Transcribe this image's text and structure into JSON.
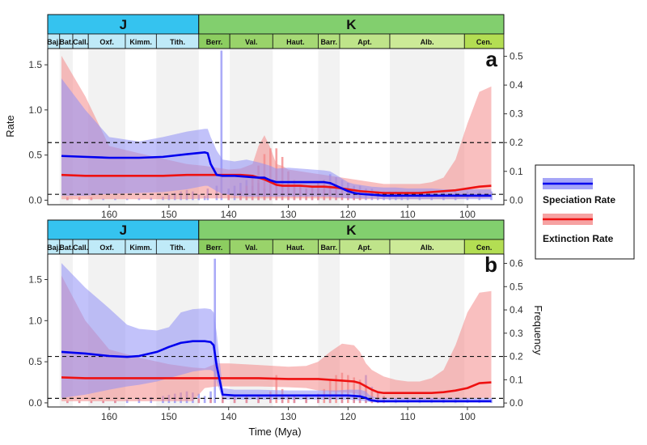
{
  "colors": {
    "speciation": "#0000ee",
    "speciation_band": "#8f8ff5",
    "extinction": "#ee1111",
    "extinction_band": "#f48b8b",
    "jurassic": "#35c3ef",
    "cretaceous": "#82cf6e",
    "cretaceous_light": "#cfe89a",
    "stage_alt": "#f2f2f2"
  },
  "legend": {
    "speciation_label": "Speciation Rate",
    "extinction_label": "Extinction Rate"
  },
  "axes": {
    "xlabel": "Time (Mya)",
    "ylabel_left_a": "Rate",
    "ylabel_right_b": "Frequency",
    "x_ticks": [
      "160",
      "150",
      "140",
      "130",
      "120",
      "110",
      "100"
    ]
  },
  "timescale": {
    "periods": [
      {
        "label": "J",
        "start": 170.3,
        "end": 145.0,
        "color": "#35c3ef"
      },
      {
        "label": "K",
        "start": 145.0,
        "end": 93.9,
        "color": "#82cf6e"
      }
    ],
    "stages": [
      {
        "label": "Baj.",
        "start": 170.3,
        "end": 168.3,
        "color": "#bfeaf8"
      },
      {
        "label": "Bat.",
        "start": 168.3,
        "end": 166.1,
        "color": "#bfeaf8"
      },
      {
        "label": "Call.",
        "start": 166.1,
        "end": 163.5,
        "color": "#bfeaf8"
      },
      {
        "label": "Oxf.",
        "start": 163.5,
        "end": 157.3,
        "color": "#bfeaf8"
      },
      {
        "label": "Kimm.",
        "start": 157.3,
        "end": 152.1,
        "color": "#bfeaf8"
      },
      {
        "label": "Tith.",
        "start": 152.1,
        "end": 145.0,
        "color": "#bfeaf8"
      },
      {
        "label": "Berr.",
        "start": 145.0,
        "end": 139.8,
        "color": "#8ccd60"
      },
      {
        "label": "Val.",
        "start": 139.8,
        "end": 132.6,
        "color": "#99d36a"
      },
      {
        "label": "Haut.",
        "start": 132.6,
        "end": 125.0,
        "color": "#a6d975"
      },
      {
        "label": "Barr.",
        "start": 125.0,
        "end": 121.4,
        "color": "#b3df7f"
      },
      {
        "label": "Apt.",
        "start": 121.4,
        "end": 113.0,
        "color": "#bfe48a"
      },
      {
        "label": "Alb.",
        "start": 113.0,
        "end": 100.5,
        "color": "#ccea97"
      },
      {
        "label": "Cen.",
        "start": 100.5,
        "end": 93.9,
        "color": "#b3de53"
      }
    ]
  },
  "chart_data": [
    {
      "panel": "a",
      "type": "line",
      "xlabel": "",
      "ylabel": "Rate",
      "xlim": [
        170.3,
        93.9
      ],
      "x_reversed": true,
      "ylim": [
        -0.05,
        1.68
      ],
      "y_ticks": [
        0.0,
        0.5,
        1.0,
        1.5
      ],
      "y2lim": [
        -0.016,
        0.527
      ],
      "y2_ticks": [
        0.0,
        0.1,
        0.2,
        0.3,
        0.4,
        0.5
      ],
      "hlines_frequency": [
        0.2,
        0.02
      ],
      "series": [
        {
          "name": "Speciation Rate",
          "x": [
            168,
            164,
            160,
            155,
            151,
            147,
            144,
            143.5,
            143,
            142,
            141,
            139,
            137,
            135,
            134,
            133,
            132,
            130,
            128,
            126,
            124,
            123,
            122,
            121,
            120,
            119,
            118,
            116,
            114,
            112,
            110,
            108,
            106,
            104,
            102,
            100,
            98,
            96
          ],
          "y": [
            0.49,
            0.48,
            0.47,
            0.47,
            0.48,
            0.51,
            0.53,
            0.52,
            0.4,
            0.28,
            0.27,
            0.27,
            0.26,
            0.25,
            0.25,
            0.22,
            0.2,
            0.2,
            0.2,
            0.2,
            0.2,
            0.19,
            0.16,
            0.13,
            0.1,
            0.08,
            0.07,
            0.06,
            0.05,
            0.05,
            0.05,
            0.05,
            0.05,
            0.05,
            0.05,
            0.05,
            0.05,
            0.05
          ],
          "lower": [
            0.05,
            0.05,
            0.07,
            0.08,
            0.09,
            0.12,
            0.16,
            0.16,
            0.14,
            0.1,
            0.07,
            0.05,
            0.04,
            0.04,
            0.04,
            0.04,
            0.04,
            0.04,
            0.04,
            0.04,
            0.04,
            0.04,
            0.03,
            0.03,
            0.02,
            0.02,
            0.02,
            0.02,
            0.01,
            0.01,
            0.01,
            0.01,
            0.01,
            0.01,
            0.01,
            0.01,
            0.01,
            0.01
          ],
          "upper": [
            1.35,
            1.0,
            0.7,
            0.65,
            0.7,
            0.76,
            0.79,
            0.79,
            0.7,
            0.55,
            0.45,
            0.43,
            0.45,
            0.42,
            0.4,
            0.38,
            0.35,
            0.36,
            0.35,
            0.34,
            0.33,
            0.32,
            0.28,
            0.24,
            0.2,
            0.18,
            0.17,
            0.15,
            0.14,
            0.14,
            0.13,
            0.13,
            0.13,
            0.12,
            0.12,
            0.12,
            0.12,
            0.12
          ]
        },
        {
          "name": "Extinction Rate",
          "x": [
            168,
            164,
            160,
            155,
            151,
            147,
            144,
            142,
            140,
            138,
            136,
            135,
            134,
            133,
            132,
            131,
            130,
            128,
            126,
            124,
            122,
            120,
            118,
            116,
            114,
            112,
            110,
            108,
            106,
            104,
            102,
            100,
            98,
            96
          ],
          "y": [
            0.28,
            0.27,
            0.27,
            0.27,
            0.27,
            0.28,
            0.28,
            0.28,
            0.28,
            0.28,
            0.27,
            0.25,
            0.23,
            0.2,
            0.17,
            0.16,
            0.16,
            0.16,
            0.15,
            0.15,
            0.14,
            0.12,
            0.1,
            0.09,
            0.08,
            0.08,
            0.08,
            0.08,
            0.09,
            0.1,
            0.11,
            0.13,
            0.15,
            0.16
          ],
          "lower": [
            0.01,
            0.01,
            0.01,
            0.01,
            0.01,
            0.01,
            0.02,
            0.02,
            0.02,
            0.02,
            0.02,
            0.02,
            0.02,
            0.02,
            0.02,
            0.02,
            0.02,
            0.02,
            0.02,
            0.02,
            0.02,
            0.02,
            0.01,
            0.01,
            0.01,
            0.01,
            0.01,
            0.01,
            0.01,
            0.01,
            0.01,
            0.02,
            0.02,
            0.03
          ],
          "upper": [
            1.6,
            1.15,
            0.6,
            0.52,
            0.46,
            0.4,
            0.38,
            0.36,
            0.34,
            0.35,
            0.4,
            0.6,
            0.72,
            0.58,
            0.4,
            0.38,
            0.34,
            0.32,
            0.3,
            0.28,
            0.26,
            0.24,
            0.22,
            0.2,
            0.18,
            0.18,
            0.18,
            0.18,
            0.2,
            0.25,
            0.45,
            0.85,
            1.2,
            1.26
          ]
        }
      ],
      "speciation_frequency_bars": {
        "x": [
          167,
          165,
          163,
          161,
          159,
          157,
          155,
          153,
          151,
          150,
          149,
          148,
          147,
          146,
          145,
          144,
          143.5,
          142,
          141.2,
          140,
          139,
          138,
          137,
          136,
          135,
          134,
          133,
          132,
          131,
          130,
          129,
          128,
          127,
          126,
          125,
          124,
          123,
          122,
          121,
          120,
          119,
          118,
          117,
          116,
          115,
          114,
          113,
          112,
          111,
          110,
          108,
          106,
          104,
          102,
          100,
          98,
          96
        ],
        "y": [
          0.005,
          0.005,
          0.005,
          0.005,
          0.005,
          0.005,
          0.007,
          0.008,
          0.012,
          0.018,
          0.025,
          0.03,
          0.035,
          0.03,
          0.02,
          0.015,
          0.04,
          0.05,
          0.52,
          0.04,
          0.05,
          0.06,
          0.07,
          0.05,
          0.06,
          0.04,
          0.05,
          0.06,
          0.07,
          0.06,
          0.05,
          0.05,
          0.04,
          0.05,
          0.06,
          0.07,
          0.09,
          0.08,
          0.07,
          0.06,
          0.05,
          0.05,
          0.04,
          0.04,
          0.03,
          0.03,
          0.03,
          0.03,
          0.03,
          0.03,
          0.03,
          0.03,
          0.03,
          0.03,
          0.03,
          0.03,
          0.03
        ]
      },
      "extinction_frequency_bars": {
        "x": [
          167,
          165,
          163,
          140,
          138,
          137,
          136,
          135,
          134,
          133,
          132,
          131,
          130,
          129,
          128,
          127,
          126,
          125,
          124,
          123,
          122,
          121,
          120,
          119,
          118
        ],
        "y": [
          0.01,
          0.01,
          0.01,
          0.02,
          0.03,
          0.05,
          0.08,
          0.12,
          0.16,
          0.18,
          0.18,
          0.15,
          0.1,
          0.07,
          0.05,
          0.04,
          0.05,
          0.06,
          0.07,
          0.06,
          0.05,
          0.04,
          0.03,
          0.02,
          0.02
        ]
      }
    },
    {
      "panel": "b",
      "type": "line",
      "xlabel": "Time (Mya)",
      "ylabel": "",
      "y2label": "Frequency",
      "xlim": [
        170.3,
        93.9
      ],
      "x_reversed": true,
      "ylim": [
        -0.05,
        1.81
      ],
      "y_ticks": [
        0.0,
        0.5,
        1.0,
        1.5
      ],
      "y2lim": [
        -0.017,
        0.64
      ],
      "y2_ticks": [
        0.0,
        0.1,
        0.2,
        0.3,
        0.4,
        0.5,
        0.6
      ],
      "hlines_frequency": [
        0.2,
        0.02
      ],
      "series": [
        {
          "name": "Speciation Rate",
          "x": [
            168,
            164,
            160,
            157,
            155,
            152,
            150,
            148,
            146,
            144,
            143,
            142.5,
            142,
            141,
            139,
            135,
            130,
            125,
            122,
            120,
            118,
            117,
            116.5,
            116,
            115,
            114,
            112,
            110,
            108,
            106,
            104,
            102,
            100,
            98,
            96
          ],
          "y": [
            0.62,
            0.6,
            0.57,
            0.56,
            0.57,
            0.62,
            0.68,
            0.73,
            0.75,
            0.75,
            0.74,
            0.7,
            0.45,
            0.1,
            0.09,
            0.09,
            0.09,
            0.09,
            0.09,
            0.09,
            0.08,
            0.06,
            0.04,
            0.03,
            0.02,
            0.02,
            0.02,
            0.02,
            0.02,
            0.02,
            0.02,
            0.02,
            0.02,
            0.02,
            0.02
          ],
          "lower": [
            0.06,
            0.1,
            0.16,
            0.2,
            0.22,
            0.26,
            0.3,
            0.34,
            0.38,
            0.4,
            0.4,
            0.38,
            0.26,
            0.04,
            0.04,
            0.04,
            0.04,
            0.04,
            0.04,
            0.04,
            0.03,
            0.02,
            0.01,
            0.01,
            0.0,
            0.0,
            0.0,
            0.0,
            0.0,
            0.0,
            0.0,
            0.0,
            0.0,
            0.0,
            0.0
          ],
          "upper": [
            1.7,
            1.4,
            1.15,
            0.95,
            0.9,
            0.88,
            0.92,
            1.1,
            1.14,
            1.15,
            1.14,
            1.1,
            0.85,
            0.18,
            0.16,
            0.16,
            0.15,
            0.15,
            0.15,
            0.16,
            0.16,
            0.14,
            0.1,
            0.08,
            0.06,
            0.06,
            0.06,
            0.06,
            0.06,
            0.06,
            0.06,
            0.06,
            0.06,
            0.06,
            0.06
          ]
        },
        {
          "name": "Extinction Rate",
          "x": [
            168,
            164,
            160,
            155,
            150,
            146,
            144,
            142,
            140,
            135,
            130,
            127,
            125,
            123,
            121,
            119,
            118,
            117,
            116,
            115,
            114,
            112,
            110,
            108,
            106,
            104,
            102,
            100,
            98,
            96
          ],
          "y": [
            0.31,
            0.3,
            0.3,
            0.3,
            0.3,
            0.3,
            0.3,
            0.3,
            0.3,
            0.3,
            0.29,
            0.29,
            0.29,
            0.28,
            0.27,
            0.26,
            0.24,
            0.2,
            0.16,
            0.13,
            0.12,
            0.12,
            0.12,
            0.12,
            0.12,
            0.13,
            0.15,
            0.18,
            0.24,
            0.25
          ],
          "lower": [
            0.02,
            0.02,
            0.02,
            0.02,
            0.02,
            0.02,
            0.18,
            0.2,
            0.2,
            0.2,
            0.19,
            0.18,
            0.15,
            0.14,
            0.13,
            0.12,
            0.1,
            0.08,
            0.06,
            0.05,
            0.05,
            0.05,
            0.04,
            0.04,
            0.04,
            0.04,
            0.04,
            0.05,
            0.06,
            0.06
          ],
          "upper": [
            1.55,
            1.0,
            0.65,
            0.55,
            0.47,
            0.43,
            0.42,
            0.48,
            0.48,
            0.46,
            0.44,
            0.45,
            0.5,
            0.62,
            0.72,
            0.7,
            0.62,
            0.48,
            0.4,
            0.36,
            0.32,
            0.28,
            0.26,
            0.26,
            0.3,
            0.4,
            0.7,
            1.1,
            1.34,
            1.36
          ]
        }
      ],
      "speciation_frequency_bars": {
        "x": [
          167,
          165,
          163,
          161,
          159,
          157,
          155,
          153,
          151,
          150,
          149,
          148,
          147,
          146,
          145,
          144,
          143,
          142.3,
          141,
          139,
          137,
          135,
          133,
          131,
          129,
          127,
          125,
          123,
          121,
          119,
          118,
          117,
          116,
          115,
          114,
          112,
          110,
          108,
          106,
          104,
          102,
          100,
          98,
          96
        ],
        "y": [
          0.005,
          0.005,
          0.006,
          0.008,
          0.01,
          0.015,
          0.02,
          0.025,
          0.03,
          0.035,
          0.04,
          0.045,
          0.05,
          0.045,
          0.04,
          0.03,
          0.05,
          0.62,
          0.04,
          0.03,
          0.03,
          0.03,
          0.03,
          0.03,
          0.03,
          0.03,
          0.03,
          0.03,
          0.03,
          0.05,
          0.08,
          0.12,
          0.07,
          0.05,
          0.03,
          0.02,
          0.02,
          0.02,
          0.02,
          0.02,
          0.02,
          0.02,
          0.02,
          0.02
        ]
      },
      "extinction_frequency_bars": {
        "x": [
          167,
          165,
          163,
          161,
          159,
          145,
          143,
          141,
          139,
          137,
          135,
          133,
          132,
          131,
          130,
          129,
          127,
          125,
          124,
          123,
          122,
          121,
          120,
          119,
          118,
          117,
          116,
          115,
          114
        ],
        "y": [
          0.01,
          0.01,
          0.01,
          0.01,
          0.01,
          0.02,
          0.02,
          0.03,
          0.03,
          0.03,
          0.03,
          0.05,
          0.12,
          0.06,
          0.03,
          0.03,
          0.03,
          0.04,
          0.06,
          0.1,
          0.12,
          0.13,
          0.12,
          0.11,
          0.1,
          0.08,
          0.06,
          0.04,
          0.03
        ]
      }
    }
  ]
}
